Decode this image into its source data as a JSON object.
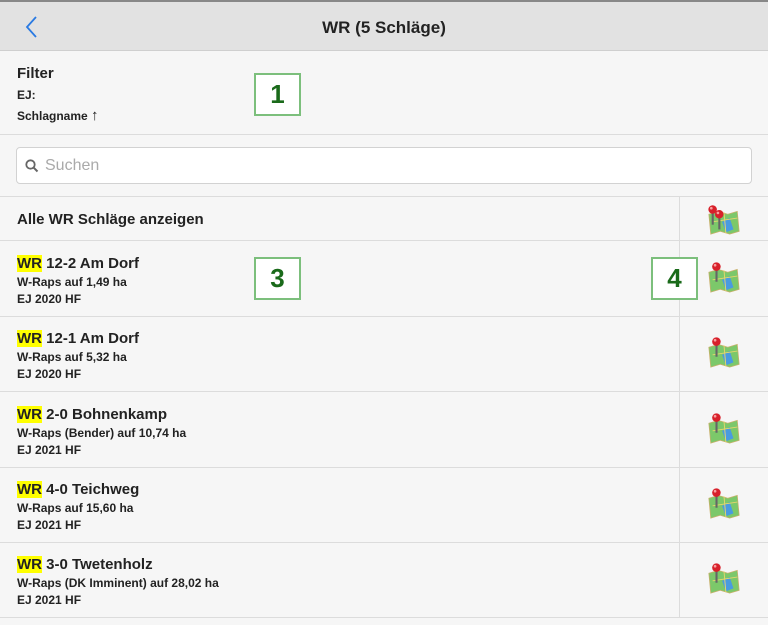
{
  "header": {
    "title": "WR (5 Schläge)",
    "back_icon": "chevron-left-icon",
    "accent": "#2a7ae2"
  },
  "filter": {
    "title": "Filter",
    "ej": "EJ:",
    "sort": "Schlagname",
    "sort_icon": "↑"
  },
  "search": {
    "placeholder": "Suchen",
    "value": ""
  },
  "show_all": {
    "label": "Alle WR Schläge anzeigen",
    "icon": "map-pins-icon"
  },
  "items": [
    {
      "tag": "WR",
      "name": " 12-2 Am Dorf",
      "crop": "W-Raps auf 1,49 ha",
      "ej": "EJ 2020 HF"
    },
    {
      "tag": "WR",
      "name": " 12-1 Am Dorf",
      "crop": "W-Raps auf 5,32 ha",
      "ej": "EJ 2020 HF"
    },
    {
      "tag": "WR",
      "name": " 2-0 Bohnenkamp",
      "crop": "W-Raps (Bender) auf 10,74 ha",
      "ej": "EJ 2021 HF"
    },
    {
      "tag": "WR",
      "name": " 4-0 Teichweg",
      "crop": "W-Raps auf 15,60 ha",
      "ej": "EJ 2021 HF"
    },
    {
      "tag": "WR",
      "name": " 3-0 Twetenholz",
      "crop": "W-Raps (DK Imminent) auf 28,02 ha",
      "ej": "EJ 2021 HF"
    }
  ],
  "annotations": [
    "1",
    "3",
    "4"
  ]
}
